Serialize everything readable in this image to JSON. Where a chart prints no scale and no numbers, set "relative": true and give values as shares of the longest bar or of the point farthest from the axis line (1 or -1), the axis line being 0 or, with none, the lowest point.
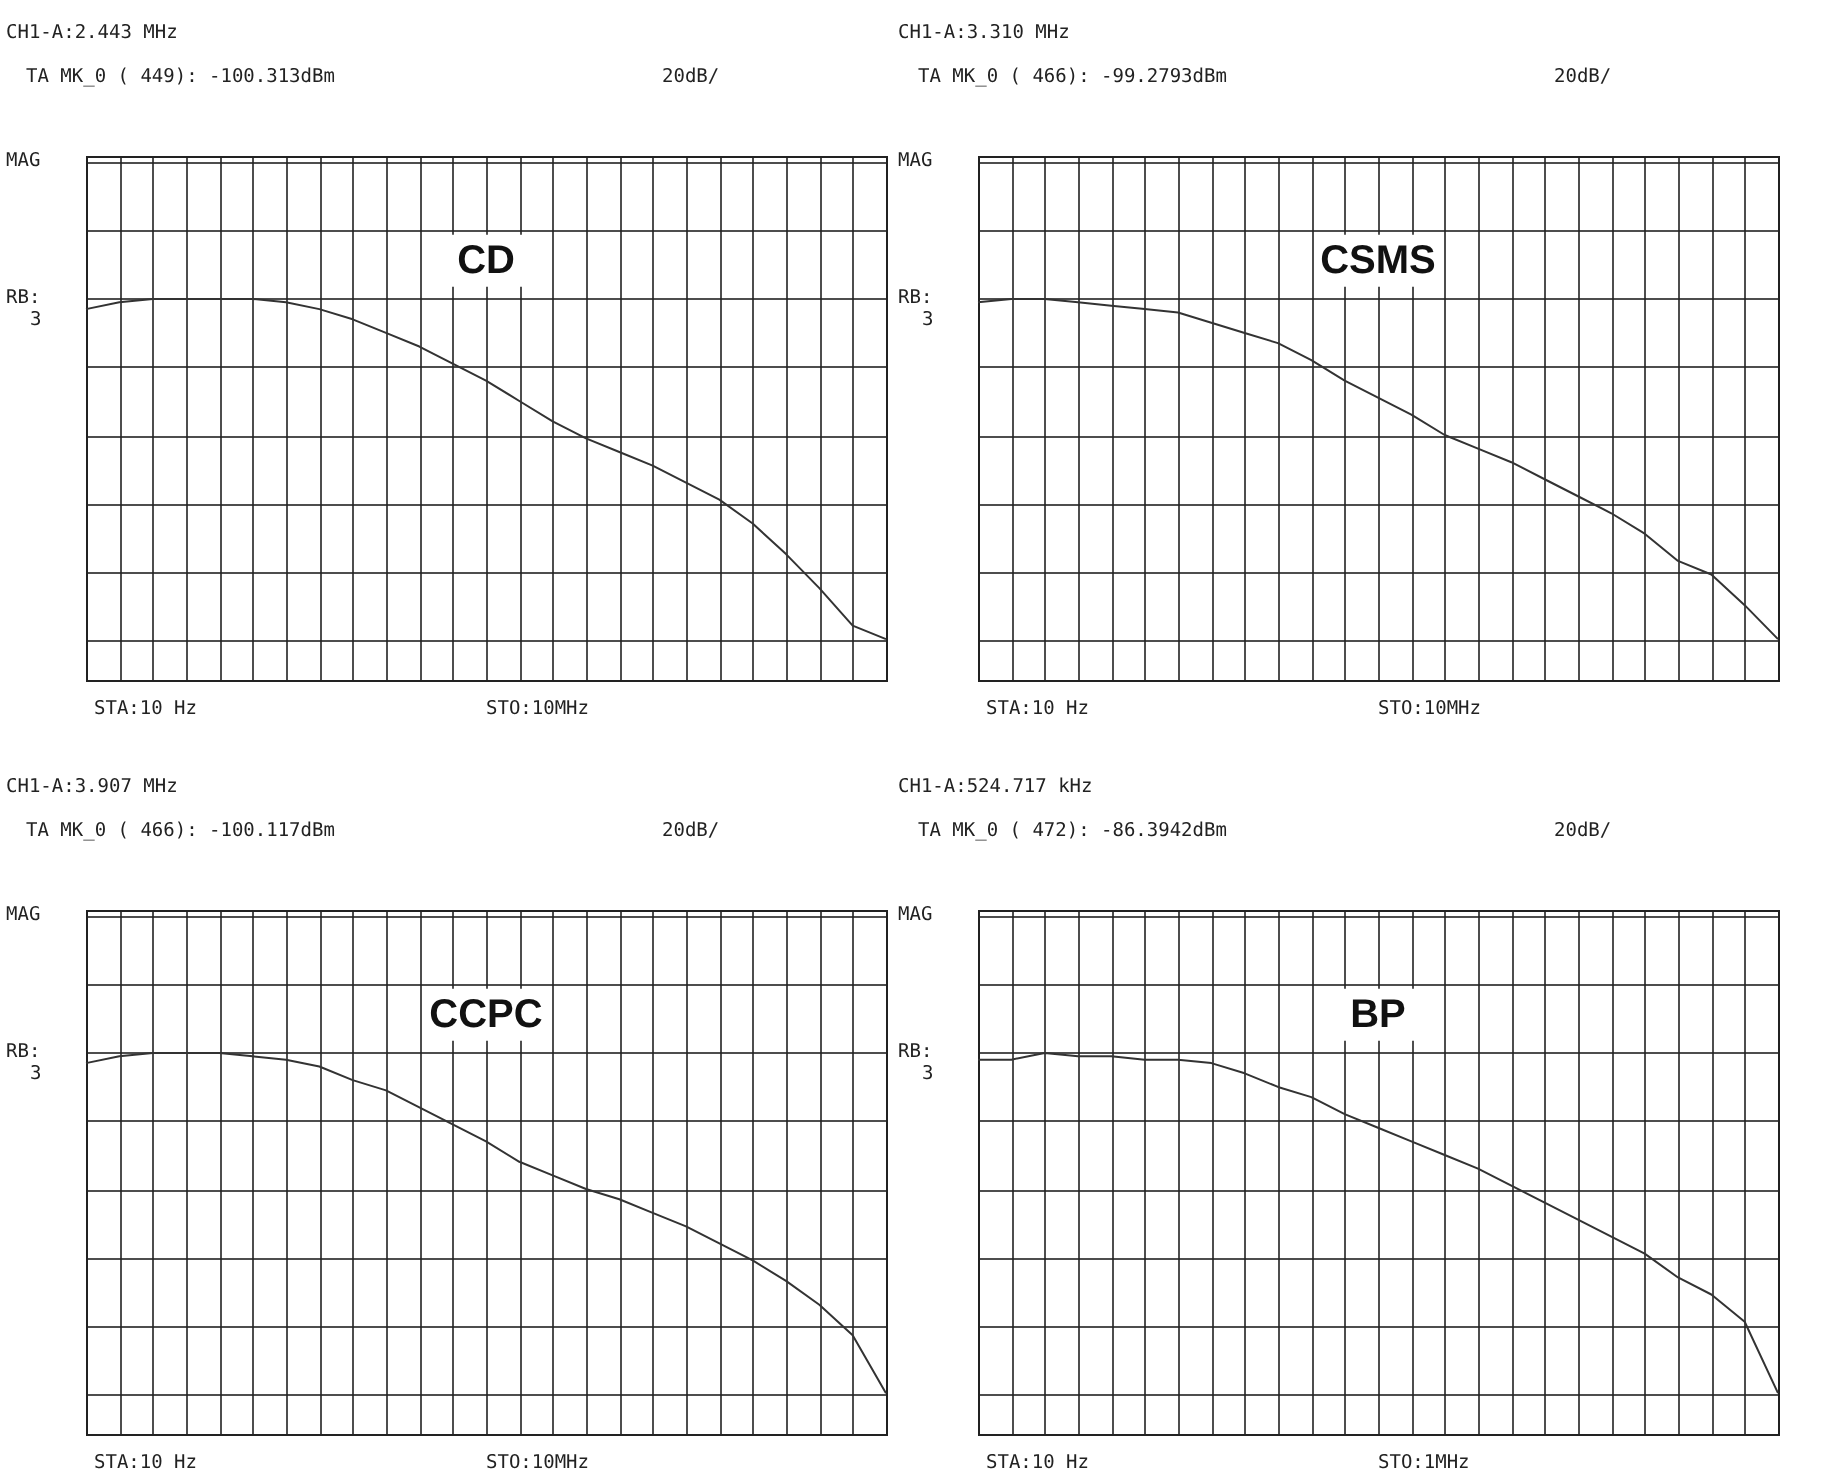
{
  "chart_data": [
    {
      "type": "line",
      "title": "CD",
      "relative": true,
      "grid": true,
      "categories": [
        null,
        null,
        null,
        null,
        null,
        null,
        null,
        null,
        null,
        null,
        null,
        null,
        null,
        null,
        null,
        null,
        null,
        null,
        null,
        null,
        null,
        null,
        null,
        null,
        null
      ],
      "series": [
        {
          "color": "#333333",
          "values": [
            0.97,
            0.99,
            1.0,
            1.0,
            1.0,
            1.0,
            0.99,
            0.97,
            0.94,
            0.9,
            0.86,
            0.81,
            0.76,
            0.7,
            0.64,
            0.59,
            0.55,
            0.51,
            0.46,
            0.41,
            0.34,
            0.25,
            0.15,
            0.04,
            0.0
          ]
        }
      ],
      "annotations": [
        "CH1-A:2.443 MHz",
        "TA   MK_0 (  449): -100.313dBm",
        "20dB/",
        "MAG",
        "RB:",
        "3",
        "STA:10 Hz",
        "STO:10MHz"
      ]
    },
    {
      "type": "line",
      "title": "CSMS",
      "relative": true,
      "grid": true,
      "categories": [
        null,
        null,
        null,
        null,
        null,
        null,
        null,
        null,
        null,
        null,
        null,
        null,
        null,
        null,
        null,
        null,
        null,
        null,
        null,
        null,
        null,
        null,
        null,
        null,
        null
      ],
      "series": [
        {
          "color": "#333333",
          "values": [
            0.99,
            1.0,
            1.0,
            0.99,
            0.98,
            0.97,
            0.96,
            0.93,
            0.9,
            0.87,
            0.82,
            0.76,
            0.71,
            0.66,
            0.6,
            0.56,
            0.52,
            0.47,
            0.42,
            0.37,
            0.31,
            0.23,
            0.19,
            0.1,
            0.0
          ]
        }
      ],
      "annotations": [
        "CH1-A:3.310 MHz",
        "TA   MK_0 (  466): -99.2793dBm",
        "20dB/",
        "MAG",
        "RB:",
        "3",
        "STA:10 Hz",
        "STO:10MHz"
      ]
    },
    {
      "type": "line",
      "title": "CCPC",
      "relative": true,
      "grid": true,
      "categories": [
        null,
        null,
        null,
        null,
        null,
        null,
        null,
        null,
        null,
        null,
        null,
        null,
        null,
        null,
        null,
        null,
        null,
        null,
        null,
        null,
        null,
        null,
        null,
        null,
        null
      ],
      "series": [
        {
          "color": "#333333",
          "values": [
            0.97,
            0.99,
            1.0,
            1.0,
            1.0,
            0.99,
            0.98,
            0.96,
            0.92,
            0.89,
            0.84,
            0.79,
            0.74,
            0.68,
            0.64,
            0.6,
            0.57,
            0.53,
            0.49,
            0.44,
            0.39,
            0.33,
            0.26,
            0.17,
            0.0
          ]
        }
      ],
      "annotations": [
        "CH1-A:3.907 MHz",
        "TA   MK_0 (  466): -100.117dBm",
        "20dB/",
        "MAG",
        "RB:",
        "3",
        "STA:10 Hz",
        "STO:10MHz"
      ]
    },
    {
      "type": "line",
      "title": "BP",
      "relative": true,
      "grid": true,
      "categories": [
        null,
        null,
        null,
        null,
        null,
        null,
        null,
        null,
        null,
        null,
        null,
        null,
        null,
        null,
        null,
        null,
        null,
        null,
        null,
        null,
        null,
        null,
        null,
        null,
        null
      ],
      "series": [
        {
          "color": "#333333",
          "values": [
            0.98,
            0.98,
            1.0,
            0.99,
            0.99,
            0.98,
            0.98,
            0.97,
            0.94,
            0.9,
            0.87,
            0.82,
            0.78,
            0.74,
            0.7,
            0.66,
            0.61,
            0.56,
            0.51,
            0.46,
            0.41,
            0.34,
            0.29,
            0.21,
            0.0
          ]
        }
      ],
      "annotations": [
        "CH1-A:524.717 kHz",
        "TA   MK_0 (  472): -86.3942dBm",
        "20dB/",
        "MAG",
        "RB:",
        "3",
        "STA:10 Hz",
        "STO:1MHz"
      ]
    }
  ]
}
